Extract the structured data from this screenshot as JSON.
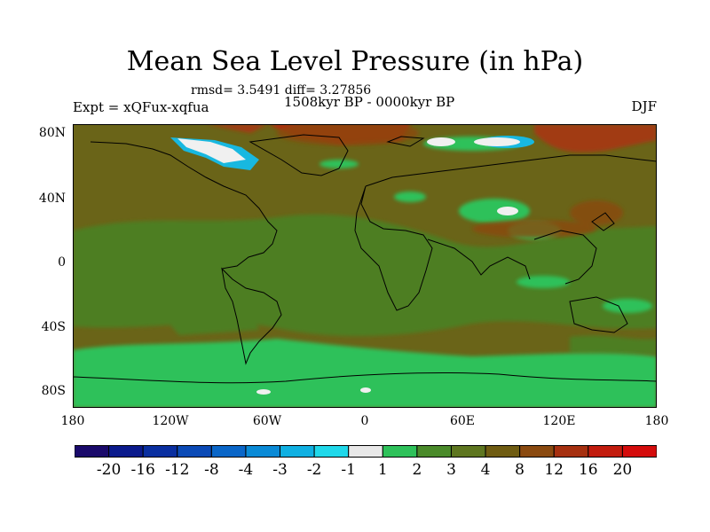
{
  "header": {
    "title": "Mean Sea Level Pressure (in hPa)",
    "stats": "rmsd= 3.5491 diff= 3.27856",
    "experiment": "Expt = xQFux-xqfua",
    "period": "1508kyr BP - 0000kyr BP",
    "season": "DJF"
  },
  "axes": {
    "lat_labels": [
      "80N",
      "40N",
      "0",
      "40S",
      "80S"
    ],
    "lon_labels": [
      "180",
      "120W",
      "60W",
      "0",
      "60E",
      "120E",
      "180"
    ]
  },
  "colorbar": {
    "labels": [
      "-20",
      "-16",
      "-12",
      "-8",
      "-4",
      "-3",
      "-2",
      "-1",
      "1",
      "2",
      "3",
      "4",
      "8",
      "12",
      "16",
      "20"
    ],
    "colors": [
      "#1a0a6b",
      "#0b1a8c",
      "#0a2fa0",
      "#0b4ab6",
      "#0a66c8",
      "#0a8ad6",
      "#10b0e2",
      "#20d8ea",
      "#e8e8e8",
      "#2ec15a",
      "#4a8a2a",
      "#5e7620",
      "#6f5c12",
      "#8a4a10",
      "#a63010",
      "#c21c0e",
      "#d40c0c"
    ]
  },
  "legend_colors": {
    "background": "#6a6418",
    "ocean_mid": "#4e7e24",
    "green_low": "#2ec15a",
    "red_high": "#b8280e",
    "white": "#f0f0f0",
    "cyan": "#18b8e0"
  }
}
